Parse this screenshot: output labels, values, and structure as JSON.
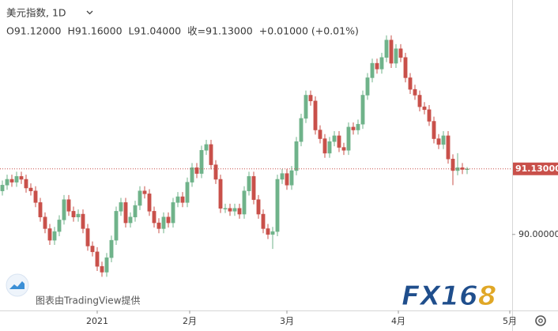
{
  "chart_data": {
    "type": "candlestick",
    "title": "美元指数, 1D",
    "ohlc_legend": [
      "O91.12000",
      "H91.16000",
      "L91.04000",
      "收=91.13000",
      "+0.01000 (+0.01%)"
    ],
    "attribution": "图表由TradingView提供",
    "logo": {
      "main": "FX16",
      "accent": "8"
    },
    "up_color": "#6fb38a",
    "down_color": "#c9504a",
    "xlim": [
      -0.5,
      107.5
    ],
    "xticks": [
      {
        "value": 20,
        "label": "2021"
      },
      {
        "value": 39.5,
        "label": "2月"
      },
      {
        "value": 60,
        "label": "3月"
      },
      {
        "value": 83.5,
        "label": "4月"
      },
      {
        "value": 107,
        "label": "5月"
      }
    ],
    "ylim": [
      88.69,
      94.04
    ],
    "yticks": [
      {
        "value": 90,
        "label": "90.00000"
      }
    ],
    "last_price": {
      "value": 91.13,
      "label": "91.13000"
    },
    "open": [
      90.75,
      90.85,
      90.95,
      90.9,
      91.0,
      90.95,
      90.8,
      90.75,
      90.55,
      90.3,
      90.1,
      89.9,
      90.05,
      90.25,
      90.6,
      90.4,
      90.3,
      90.35,
      90.1,
      89.8,
      89.7,
      89.45,
      89.35,
      89.6,
      89.9,
      90.4,
      90.55,
      90.2,
      90.3,
      90.5,
      90.75,
      90.7,
      90.4,
      90.2,
      90.1,
      90.3,
      90.2,
      90.55,
      90.65,
      90.55,
      90.9,
      91.15,
      91.05,
      91.45,
      91.55,
      91.2,
      90.95,
      90.45,
      90.45,
      90.4,
      90.45,
      90.35,
      90.75,
      91.0,
      90.6,
      90.35,
      90.1,
      90.0,
      90.05,
      90.95,
      91.05,
      90.85,
      91.1,
      91.6,
      92.0,
      92.4,
      92.3,
      91.8,
      91.65,
      91.4,
      91.6,
      91.7,
      91.5,
      91.45,
      91.85,
      91.8,
      91.9,
      92.4,
      92.7,
      92.95,
      92.85,
      93.05,
      93.35,
      92.95,
      93.2,
      93.05,
      92.7,
      92.5,
      92.4,
      92.2,
      92.15,
      91.95,
      91.65,
      91.55,
      91.7,
      91.3,
      91.1,
      91.15,
      91.12
    ],
    "high": [
      90.93,
      91.03,
      91.03,
      91.08,
      91.08,
      91.03,
      90.88,
      90.83,
      90.63,
      90.38,
      90.18,
      90.13,
      90.33,
      90.68,
      90.68,
      90.48,
      90.43,
      90.43,
      90.18,
      89.88,
      89.78,
      89.53,
      89.68,
      89.98,
      90.48,
      90.63,
      90.63,
      90.38,
      90.58,
      90.83,
      90.83,
      90.78,
      90.48,
      90.28,
      90.38,
      90.38,
      90.63,
      90.73,
      90.73,
      90.98,
      91.23,
      91.23,
      91.53,
      91.63,
      91.63,
      91.28,
      91.03,
      90.53,
      90.53,
      90.53,
      90.53,
      90.83,
      91.08,
      91.08,
      90.68,
      90.43,
      90.18,
      90.13,
      91.03,
      91.13,
      91.13,
      91.18,
      91.68,
      92.08,
      92.48,
      92.48,
      92.38,
      91.88,
      91.73,
      91.68,
      91.78,
      91.78,
      91.58,
      91.93,
      91.93,
      91.98,
      92.48,
      92.78,
      93.03,
      93.03,
      93.13,
      93.43,
      93.43,
      93.28,
      93.28,
      93.13,
      92.78,
      92.58,
      92.48,
      92.28,
      92.23,
      92.03,
      91.73,
      91.78,
      91.78,
      91.38,
      91.4,
      91.23,
      91.16
    ],
    "low": [
      90.67,
      90.77,
      90.82,
      90.82,
      90.87,
      90.72,
      90.67,
      90.47,
      90.22,
      90.02,
      89.82,
      89.82,
      89.97,
      90.17,
      90.32,
      90.22,
      90.22,
      90.02,
      89.72,
      89.62,
      89.37,
      89.27,
      89.27,
      89.52,
      89.82,
      90.32,
      90.12,
      90.12,
      90.22,
      90.42,
      90.62,
      90.32,
      90.12,
      90.02,
      90.02,
      90.12,
      90.12,
      90.47,
      90.47,
      90.47,
      90.82,
      90.97,
      90.97,
      91.37,
      91.12,
      90.87,
      90.37,
      90.37,
      90.32,
      90.32,
      90.27,
      90.27,
      90.67,
      90.52,
      90.27,
      90.02,
      89.92,
      89.75,
      89.97,
      90.87,
      90.77,
      90.77,
      91.02,
      91.52,
      91.92,
      92.22,
      91.72,
      91.57,
      91.32,
      91.32,
      91.52,
      91.42,
      91.37,
      91.37,
      91.72,
      91.72,
      91.82,
      92.32,
      92.62,
      92.77,
      92.77,
      92.97,
      92.87,
      92.87,
      92.97,
      92.62,
      92.42,
      92.32,
      92.12,
      92.07,
      91.87,
      91.57,
      91.47,
      91.47,
      91.22,
      90.85,
      91.02,
      91.04,
      91.04
    ],
    "close": [
      90.85,
      90.95,
      90.9,
      91.0,
      90.95,
      90.8,
      90.75,
      90.55,
      90.3,
      90.1,
      89.9,
      90.05,
      90.25,
      90.6,
      90.4,
      90.3,
      90.35,
      90.1,
      89.8,
      89.7,
      89.45,
      89.35,
      89.6,
      89.9,
      90.4,
      90.55,
      90.2,
      90.3,
      90.5,
      90.75,
      90.7,
      90.4,
      90.2,
      90.1,
      90.3,
      90.2,
      90.55,
      90.65,
      90.55,
      90.9,
      91.15,
      91.05,
      91.45,
      91.55,
      91.2,
      90.95,
      90.45,
      90.45,
      90.4,
      90.45,
      90.35,
      90.75,
      91.0,
      90.6,
      90.35,
      90.1,
      90.0,
      90.05,
      90.95,
      91.05,
      90.85,
      91.1,
      91.6,
      92.0,
      92.4,
      92.3,
      91.8,
      91.65,
      91.4,
      91.6,
      91.7,
      91.5,
      91.45,
      91.85,
      91.8,
      91.9,
      92.4,
      92.7,
      92.95,
      92.85,
      93.05,
      93.35,
      92.95,
      93.2,
      93.05,
      92.7,
      92.5,
      92.4,
      92.2,
      92.15,
      91.95,
      91.65,
      91.55,
      91.7,
      91.3,
      91.1,
      91.15,
      91.12,
      91.13
    ]
  }
}
